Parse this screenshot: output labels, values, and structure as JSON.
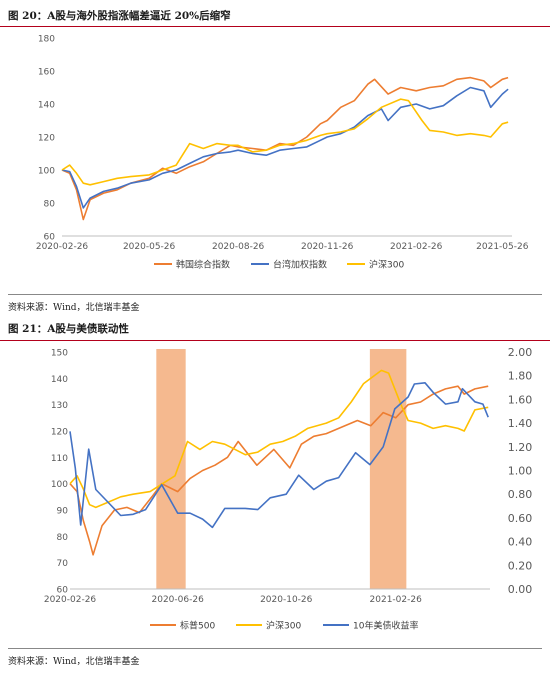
{
  "figure20": {
    "title": "图 20：A股与海外股指涨幅差逼近 20%后缩窄",
    "source": "资料来源：Wind，北信瑞丰基金"
  },
  "figure21": {
    "title": "图 21：A股与美债联动性",
    "source": "资料来源：Wind，北信瑞丰基金"
  },
  "chart_data": [
    {
      "type": "line",
      "x_type": "date",
      "x_ticks": [
        "2020-02-26",
        "2020-05-26",
        "2020-08-26",
        "2020-11-26",
        "2021-02-26",
        "2021-05-26"
      ],
      "xlim": [
        "2020-02-26",
        "2021-06-05"
      ],
      "ylim": [
        60,
        180
      ],
      "yticks": [
        60,
        80,
        100,
        120,
        140,
        160,
        180
      ],
      "legend_position": "bottom",
      "grid": false,
      "series": [
        {
          "name": "韩国综合指数",
          "color": "#ed7d31",
          "points": [
            [
              "2020-02-26",
              100
            ],
            [
              "2020-03-05",
              98
            ],
            [
              "2020-03-12",
              88
            ],
            [
              "2020-03-19",
              70
            ],
            [
              "2020-03-26",
              82
            ],
            [
              "2020-04-09",
              86
            ],
            [
              "2020-04-23",
              88
            ],
            [
              "2020-05-07",
              92
            ],
            [
              "2020-05-26",
              95
            ],
            [
              "2020-06-09",
              101
            ],
            [
              "2020-06-23",
              98
            ],
            [
              "2020-07-07",
              102
            ],
            [
              "2020-07-21",
              105
            ],
            [
              "2020-08-04",
              110
            ],
            [
              "2020-08-18",
              115
            ],
            [
              "2020-08-26",
              114
            ],
            [
              "2020-09-10",
              113
            ],
            [
              "2020-09-24",
              112
            ],
            [
              "2020-10-08",
              116
            ],
            [
              "2020-10-22",
              115
            ],
            [
              "2020-11-05",
              120
            ],
            [
              "2020-11-19",
              128
            ],
            [
              "2020-11-26",
              130
            ],
            [
              "2020-12-10",
              138
            ],
            [
              "2020-12-24",
              142
            ],
            [
              "2021-01-07",
              152
            ],
            [
              "2021-01-14",
              155
            ],
            [
              "2021-01-28",
              146
            ],
            [
              "2021-02-10",
              150
            ],
            [
              "2021-02-26",
              148
            ],
            [
              "2021-03-12",
              150
            ],
            [
              "2021-03-26",
              151
            ],
            [
              "2021-04-09",
              155
            ],
            [
              "2021-04-23",
              156
            ],
            [
              "2021-05-07",
              154
            ],
            [
              "2021-05-14",
              150
            ],
            [
              "2021-05-26",
              155
            ],
            [
              "2021-06-01",
              156
            ]
          ]
        },
        {
          "name": "台湾加权指数",
          "color": "#4472c4",
          "points": [
            [
              "2020-02-26",
              100
            ],
            [
              "2020-03-05",
              99
            ],
            [
              "2020-03-12",
              90
            ],
            [
              "2020-03-19",
              77
            ],
            [
              "2020-03-26",
              83
            ],
            [
              "2020-04-09",
              87
            ],
            [
              "2020-04-23",
              89
            ],
            [
              "2020-05-07",
              92
            ],
            [
              "2020-05-26",
              94
            ],
            [
              "2020-06-09",
              98
            ],
            [
              "2020-06-23",
              100
            ],
            [
              "2020-07-07",
              104
            ],
            [
              "2020-07-21",
              108
            ],
            [
              "2020-08-04",
              110
            ],
            [
              "2020-08-18",
              111
            ],
            [
              "2020-08-26",
              112
            ],
            [
              "2020-09-10",
              110
            ],
            [
              "2020-09-24",
              109
            ],
            [
              "2020-10-08",
              112
            ],
            [
              "2020-10-22",
              113
            ],
            [
              "2020-11-05",
              114
            ],
            [
              "2020-11-19",
              118
            ],
            [
              "2020-11-26",
              120
            ],
            [
              "2020-12-10",
              122
            ],
            [
              "2020-12-24",
              126
            ],
            [
              "2021-01-07",
              133
            ],
            [
              "2021-01-21",
              137
            ],
            [
              "2021-01-28",
              130
            ],
            [
              "2021-02-10",
              138
            ],
            [
              "2021-02-26",
              140
            ],
            [
              "2021-03-12",
              137
            ],
            [
              "2021-03-26",
              139
            ],
            [
              "2021-04-09",
              145
            ],
            [
              "2021-04-23",
              150
            ],
            [
              "2021-05-07",
              148
            ],
            [
              "2021-05-14",
              138
            ],
            [
              "2021-05-26",
              146
            ],
            [
              "2021-06-01",
              149
            ]
          ]
        },
        {
          "name": "沪深300",
          "color": "#ffc000",
          "points": [
            [
              "2020-02-26",
              100
            ],
            [
              "2020-03-05",
              103
            ],
            [
              "2020-03-12",
              98
            ],
            [
              "2020-03-19",
              92
            ],
            [
              "2020-03-26",
              91
            ],
            [
              "2020-04-09",
              93
            ],
            [
              "2020-04-23",
              95
            ],
            [
              "2020-05-07",
              96
            ],
            [
              "2020-05-26",
              97
            ],
            [
              "2020-06-09",
              100
            ],
            [
              "2020-06-23",
              103
            ],
            [
              "2020-07-07",
              116
            ],
            [
              "2020-07-21",
              113
            ],
            [
              "2020-08-04",
              116
            ],
            [
              "2020-08-18",
              115
            ],
            [
              "2020-08-26",
              115
            ],
            [
              "2020-09-10",
              111
            ],
            [
              "2020-09-24",
              112
            ],
            [
              "2020-10-08",
              115
            ],
            [
              "2020-10-22",
              116
            ],
            [
              "2020-11-05",
              118
            ],
            [
              "2020-11-19",
              121
            ],
            [
              "2020-11-26",
              122
            ],
            [
              "2020-12-10",
              123
            ],
            [
              "2020-12-24",
              125
            ],
            [
              "2021-01-07",
              131
            ],
            [
              "2021-01-21",
              138
            ],
            [
              "2021-02-10",
              143
            ],
            [
              "2021-02-18",
              142
            ],
            [
              "2021-03-04",
              130
            ],
            [
              "2021-03-12",
              124
            ],
            [
              "2021-03-26",
              123
            ],
            [
              "2021-04-09",
              121
            ],
            [
              "2021-04-23",
              122
            ],
            [
              "2021-05-07",
              121
            ],
            [
              "2021-05-14",
              120
            ],
            [
              "2021-05-26",
              128
            ],
            [
              "2021-06-01",
              129
            ]
          ]
        }
      ]
    },
    {
      "type": "line",
      "x_type": "date",
      "x_ticks": [
        "2020-02-26",
        "2020-06-26",
        "2020-10-26",
        "2021-02-26"
      ],
      "xlim": [
        "2020-02-26",
        "2021-06-12"
      ],
      "ylim_left": [
        60,
        150
      ],
      "yticks_left": [
        60,
        70,
        80,
        90,
        100,
        110,
        120,
        130,
        140,
        150
      ],
      "ylim_right": [
        0.0,
        2.0
      ],
      "yticks_right": [
        "0.00",
        "0.20",
        "0.40",
        "0.60",
        "0.80",
        "1.00",
        "1.20",
        "1.40",
        "1.60",
        "1.80",
        "2.00"
      ],
      "legend_position": "bottom",
      "grid": false,
      "shaded_periods": [
        {
          "start": "2020-06-02",
          "end": "2020-07-05",
          "color": "#f4b183"
        },
        {
          "start": "2021-01-28",
          "end": "2021-03-10",
          "color": "#f4b183"
        }
      ],
      "series": [
        {
          "name": "标普500",
          "color": "#ed7d31",
          "axis": "left",
          "points": [
            [
              "2020-02-26",
              100
            ],
            [
              "2020-03-05",
              97
            ],
            [
              "2020-03-12",
              86
            ],
            [
              "2020-03-19",
              78
            ],
            [
              "2020-03-23",
              73
            ],
            [
              "2020-04-02",
              84
            ],
            [
              "2020-04-16",
              90
            ],
            [
              "2020-04-30",
              91
            ],
            [
              "2020-05-14",
              89
            ],
            [
              "2020-05-28",
              95
            ],
            [
              "2020-06-08",
              100
            ],
            [
              "2020-06-26",
              97
            ],
            [
              "2020-07-10",
              102
            ],
            [
              "2020-07-24",
              105
            ],
            [
              "2020-08-07",
              107
            ],
            [
              "2020-08-21",
              110
            ],
            [
              "2020-09-02",
              116
            ],
            [
              "2020-09-23",
              107
            ],
            [
              "2020-10-12",
              113
            ],
            [
              "2020-10-30",
              106
            ],
            [
              "2020-11-12",
              115
            ],
            [
              "2020-11-26",
              118
            ],
            [
              "2020-12-10",
              119
            ],
            [
              "2020-12-24",
              121
            ],
            [
              "2021-01-14",
              124
            ],
            [
              "2021-01-29",
              122
            ],
            [
              "2021-02-12",
              127
            ],
            [
              "2021-02-26",
              125
            ],
            [
              "2021-03-12",
              130
            ],
            [
              "2021-03-26",
              131
            ],
            [
              "2021-04-09",
              134
            ],
            [
              "2021-04-23",
              136
            ],
            [
              "2021-05-07",
              137
            ],
            [
              "2021-05-14",
              134
            ],
            [
              "2021-05-26",
              136
            ],
            [
              "2021-06-10",
              137
            ]
          ]
        },
        {
          "name": "沪深300",
          "color": "#ffc000",
          "axis": "left",
          "points": [
            [
              "2020-02-26",
              100
            ],
            [
              "2020-03-05",
              103
            ],
            [
              "2020-03-12",
              98
            ],
            [
              "2020-03-19",
              92
            ],
            [
              "2020-03-26",
              91
            ],
            [
              "2020-04-09",
              93
            ],
            [
              "2020-04-23",
              95
            ],
            [
              "2020-05-07",
              96
            ],
            [
              "2020-05-26",
              97
            ],
            [
              "2020-06-09",
              100
            ],
            [
              "2020-06-23",
              103
            ],
            [
              "2020-07-07",
              116
            ],
            [
              "2020-07-21",
              113
            ],
            [
              "2020-08-04",
              116
            ],
            [
              "2020-08-18",
              115
            ],
            [
              "2020-09-10",
              111
            ],
            [
              "2020-09-24",
              112
            ],
            [
              "2020-10-08",
              115
            ],
            [
              "2020-10-22",
              116
            ],
            [
              "2020-11-05",
              118
            ],
            [
              "2020-11-19",
              121
            ],
            [
              "2020-12-10",
              123
            ],
            [
              "2020-12-24",
              125
            ],
            [
              "2021-01-07",
              131
            ],
            [
              "2021-01-21",
              138
            ],
            [
              "2021-02-10",
              143
            ],
            [
              "2021-02-18",
              142
            ],
            [
              "2021-03-04",
              130
            ],
            [
              "2021-03-12",
              124
            ],
            [
              "2021-03-26",
              123
            ],
            [
              "2021-04-09",
              121
            ],
            [
              "2021-04-23",
              122
            ],
            [
              "2021-05-07",
              121
            ],
            [
              "2021-05-14",
              120
            ],
            [
              "2021-05-26",
              128
            ],
            [
              "2021-06-10",
              129
            ]
          ]
        },
        {
          "name": "10年美债收益率",
          "color": "#4472c4",
          "axis": "right",
          "points": [
            [
              "2020-02-26",
              1.33
            ],
            [
              "2020-03-03",
              1.02
            ],
            [
              "2020-03-09",
              0.54
            ],
            [
              "2020-03-18",
              1.18
            ],
            [
              "2020-03-26",
              0.84
            ],
            [
              "2020-04-09",
              0.73
            ],
            [
              "2020-04-23",
              0.62
            ],
            [
              "2020-05-07",
              0.63
            ],
            [
              "2020-05-21",
              0.67
            ],
            [
              "2020-06-08",
              0.88
            ],
            [
              "2020-06-26",
              0.64
            ],
            [
              "2020-07-10",
              0.64
            ],
            [
              "2020-07-24",
              0.59
            ],
            [
              "2020-08-04",
              0.52
            ],
            [
              "2020-08-18",
              0.68
            ],
            [
              "2020-09-10",
              0.68
            ],
            [
              "2020-09-24",
              0.67
            ],
            [
              "2020-10-08",
              0.77
            ],
            [
              "2020-10-26",
              0.8
            ],
            [
              "2020-11-09",
              0.96
            ],
            [
              "2020-11-26",
              0.84
            ],
            [
              "2020-12-10",
              0.91
            ],
            [
              "2020-12-24",
              0.94
            ],
            [
              "2021-01-12",
              1.15
            ],
            [
              "2021-01-28",
              1.05
            ],
            [
              "2021-02-12",
              1.2
            ],
            [
              "2021-02-25",
              1.52
            ],
            [
              "2021-03-12",
              1.62
            ],
            [
              "2021-03-19",
              1.73
            ],
            [
              "2021-03-31",
              1.74
            ],
            [
              "2021-04-09",
              1.66
            ],
            [
              "2021-04-23",
              1.56
            ],
            [
              "2021-05-07",
              1.58
            ],
            [
              "2021-05-12",
              1.69
            ],
            [
              "2021-05-26",
              1.58
            ],
            [
              "2021-06-04",
              1.56
            ],
            [
              "2021-06-10",
              1.45
            ]
          ]
        }
      ]
    }
  ]
}
